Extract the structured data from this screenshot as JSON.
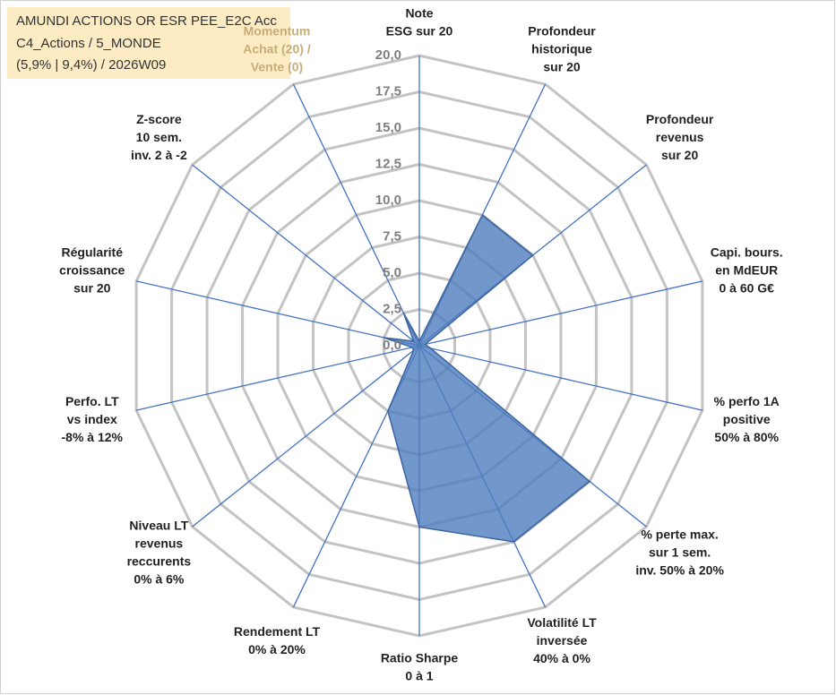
{
  "chart_data": {
    "type": "radar",
    "title": [
      "AMUNDI ACTIONS OR ESR PEE_E2C Acc",
      "C4_Actions / 5_MONDE",
      "(5,9% | 9,4%) / 2026W09"
    ],
    "categories": [
      [
        "Note",
        "ESG sur 20"
      ],
      [
        "Profondeur",
        "historique",
        "sur 20"
      ],
      [
        "Profondeur",
        "revenus",
        "sur 20"
      ],
      [
        "Capi. bours.",
        "en MdEUR",
        "0 à 60 G€"
      ],
      [
        "% perfo 1A",
        "positive",
        "50% à 80%"
      ],
      [
        "% perte max.",
        "sur 1 sem.",
        "inv. 50% à 20%"
      ],
      [
        "Volatilité LT",
        "inversée",
        "40% à 0%"
      ],
      [
        "Ratio Sharpe",
        "0 à 1"
      ],
      [
        "Rendement LT",
        "0% à 20%"
      ],
      [
        "Niveau LT",
        "revenus",
        "reccurents",
        "0% à 6%"
      ],
      [
        "Perfo. LT",
        "vs index",
        "-8% à 12%"
      ],
      [
        "Régularité",
        "croissance",
        "sur 20"
      ],
      [
        "Z-score",
        "10 sem.",
        "inv. 2 à -2"
      ],
      [
        "Momentum",
        "Achat (20) /",
        "Vente (0)"
      ]
    ],
    "values": [
      0.3,
      10,
      10,
      0.4,
      0.8,
      15,
      15,
      12.5,
      5,
      0.5,
      0.5,
      2.5,
      0.5,
      2.5
    ],
    "color": "#4f7dbd",
    "ylim": [
      0,
      20
    ],
    "yticks": [
      {
        "value": 0,
        "label": "0,0"
      },
      {
        "value": 2.5,
        "label": "2,5"
      },
      {
        "value": 5,
        "label": "5,0"
      },
      {
        "value": 7.5,
        "label": "7,5"
      },
      {
        "value": 10,
        "label": "10,0"
      },
      {
        "value": 12.5,
        "label": "12,5"
      },
      {
        "value": 15,
        "label": "15,0"
      },
      {
        "value": 17.5,
        "label": "17,5"
      },
      {
        "value": 20,
        "label": "20,0"
      }
    ]
  }
}
